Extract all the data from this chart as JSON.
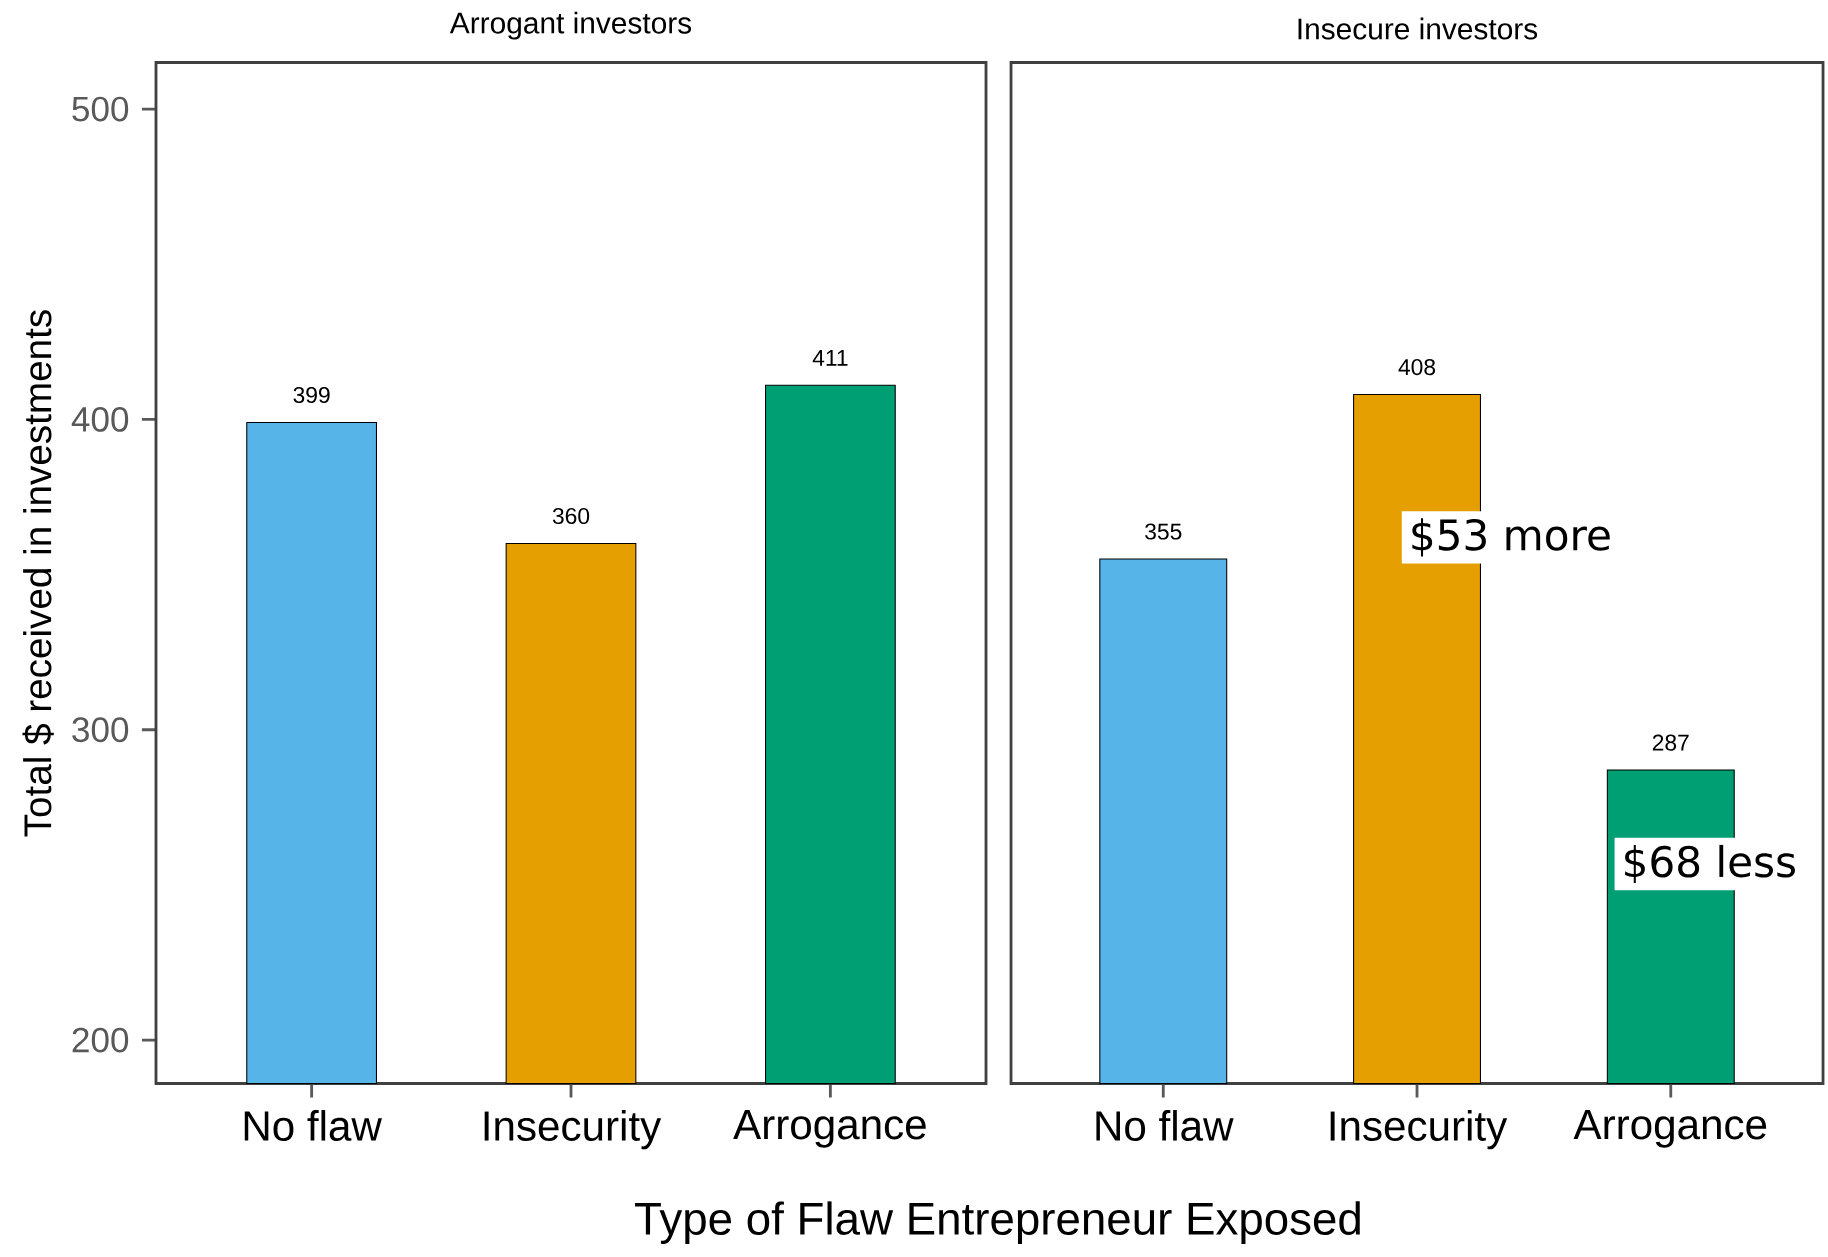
{
  "chart_data": [
    {
      "type": "bar",
      "title": "Arrogant investors",
      "xlabel": "Type of Flaw Entrepreneur Exposed",
      "ylabel": "Total $ received in investments",
      "categories": [
        "No flaw",
        "Insecurity",
        "Arrogance"
      ],
      "values": [
        399,
        360,
        411
      ],
      "colors": [
        "#56b4e9",
        "#e69f00",
        "#009e73"
      ],
      "ylim": [
        186,
        515
      ],
      "yticks": [
        200,
        300,
        400,
        500
      ],
      "data_labels": true
    },
    {
      "type": "bar",
      "title": "Insecure investors",
      "categories": [
        "No flaw",
        "Insecurity",
        "Arrogance"
      ],
      "values": [
        355,
        408,
        287
      ],
      "colors": [
        "#56b4e9",
        "#e69f00",
        "#009e73"
      ],
      "ylim": [
        186,
        515
      ],
      "tick_labels": "x",
      "data_labels": true,
      "annotations": [
        "$53 more",
        "$68 less"
      ]
    }
  ]
}
